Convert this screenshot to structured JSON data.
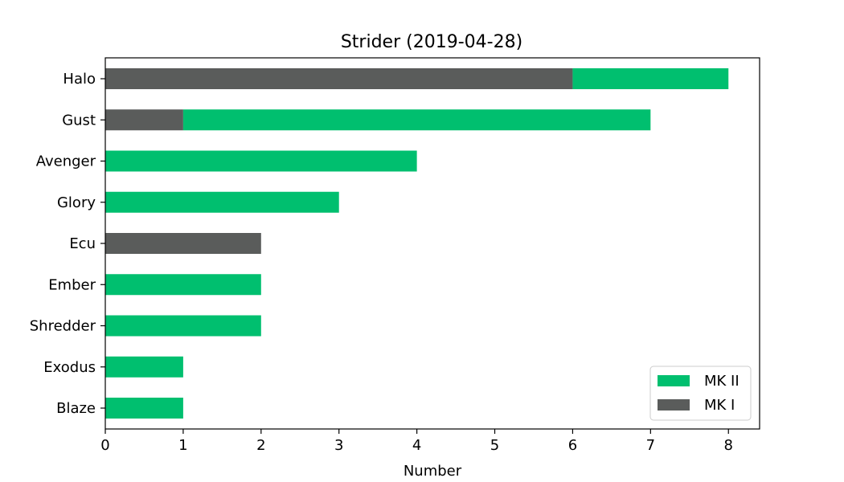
{
  "chart_data": {
    "type": "bar",
    "orientation": "horizontal",
    "stacked": true,
    "title": "Strider (2019-04-28)",
    "xlabel": "Number",
    "ylabel": "",
    "xlim": [
      0,
      8.4
    ],
    "x_ticks": [
      0,
      1,
      2,
      3,
      4,
      5,
      6,
      7,
      8
    ],
    "categories": [
      "Halo",
      "Gust",
      "Avenger",
      "Glory",
      "Ecu",
      "Ember",
      "Shredder",
      "Exodus",
      "Blaze"
    ],
    "series": [
      {
        "name": "MK I",
        "color": "#5a5c5b",
        "values": [
          6,
          1,
          0,
          0,
          2,
          0,
          0,
          0,
          0
        ]
      },
      {
        "name": "MK II",
        "color": "#00bf6f",
        "values": [
          2,
          6,
          4,
          3,
          0,
          2,
          2,
          1,
          1
        ]
      }
    ],
    "legend": {
      "position": "bottom-right",
      "order": [
        "MK II",
        "MK I"
      ]
    },
    "grid": false
  }
}
